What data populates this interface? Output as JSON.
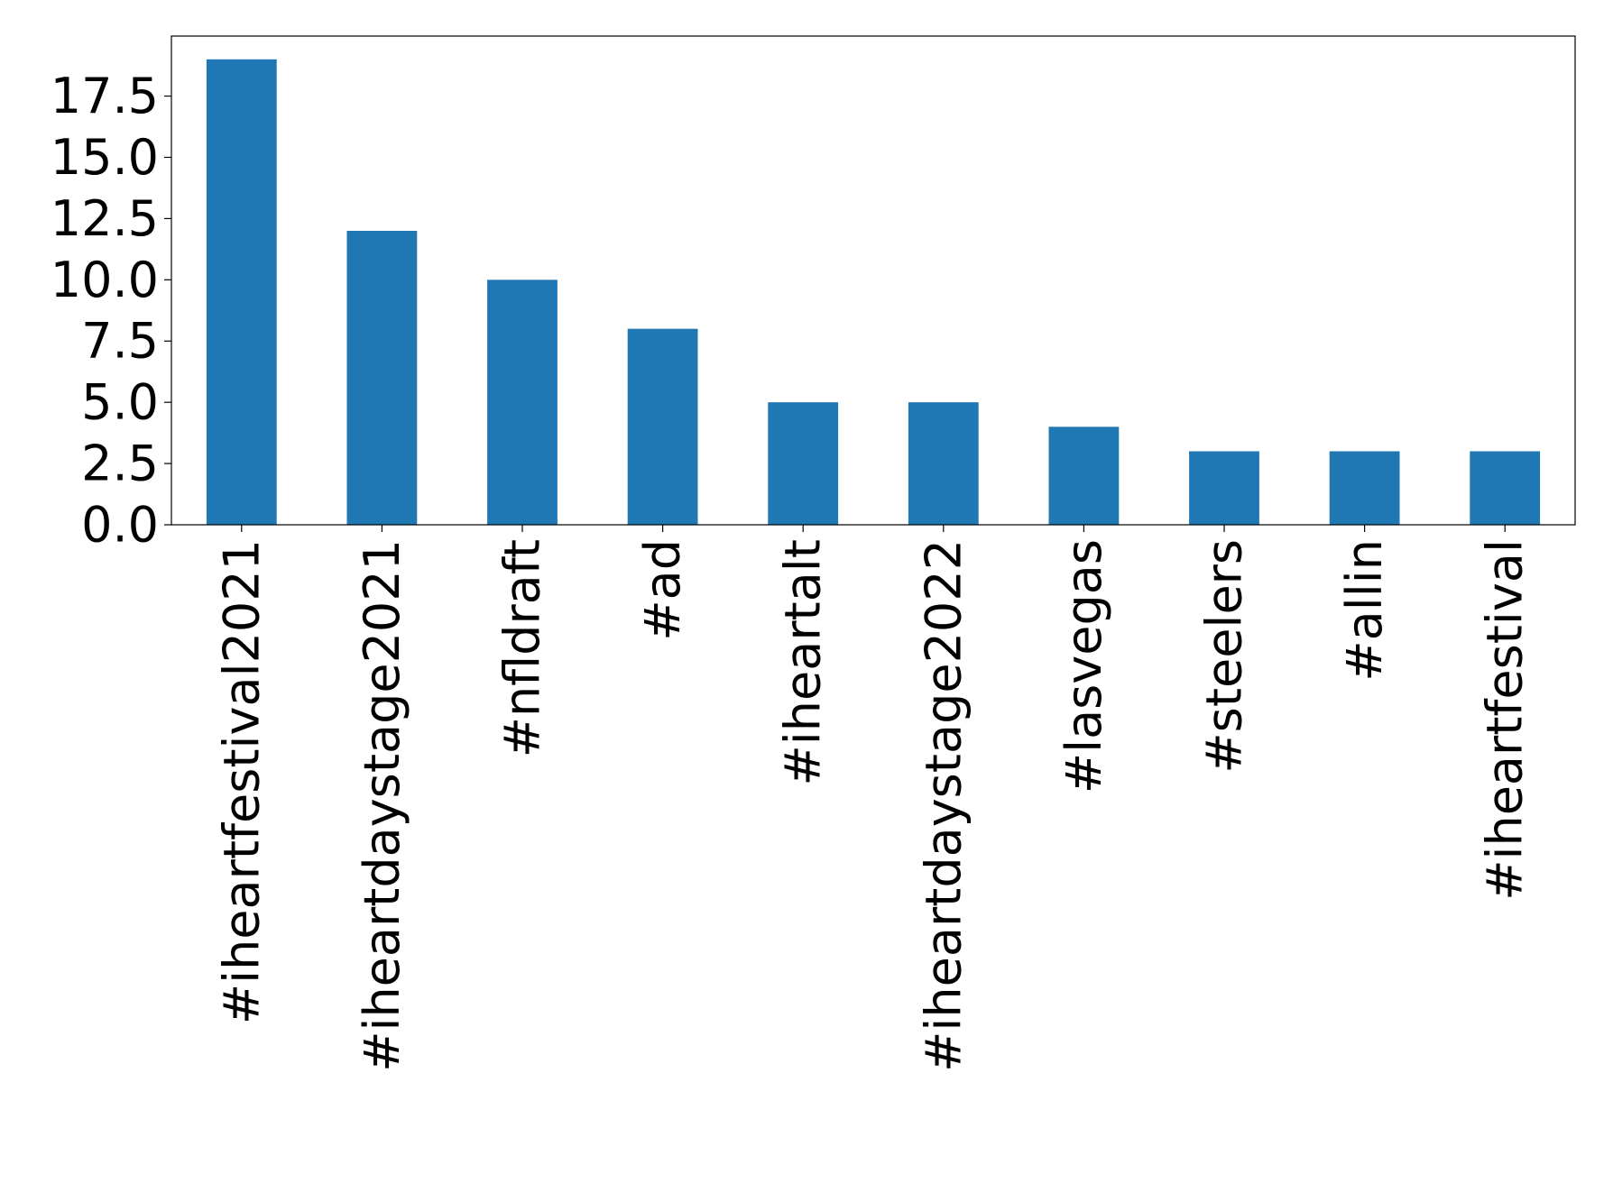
{
  "chart_data": {
    "type": "bar",
    "title": "",
    "xlabel": "",
    "ylabel": "",
    "categories": [
      "#iheartfestival2021",
      "#iheartdaystage2021",
      "#nfldraft",
      "#ad",
      "#iheartalt",
      "#iheartdaystage2022",
      "#lasvegas",
      "#steelers",
      "#allin",
      "#iheartfestival"
    ],
    "values": [
      19,
      12,
      10,
      8,
      5,
      5,
      4,
      3,
      3,
      3
    ],
    "ylim": [
      0,
      19.95
    ],
    "yticks": [
      0.0,
      2.5,
      5.0,
      7.5,
      10.0,
      12.5,
      15.0,
      17.5
    ],
    "ytick_labels": [
      "0.0",
      "2.5",
      "5.0",
      "7.5",
      "10.0",
      "12.5",
      "15.0",
      "17.5"
    ],
    "grid": false,
    "legend": "none",
    "colors": {
      "bar": "#1f77b4",
      "axis": "#000000"
    }
  }
}
